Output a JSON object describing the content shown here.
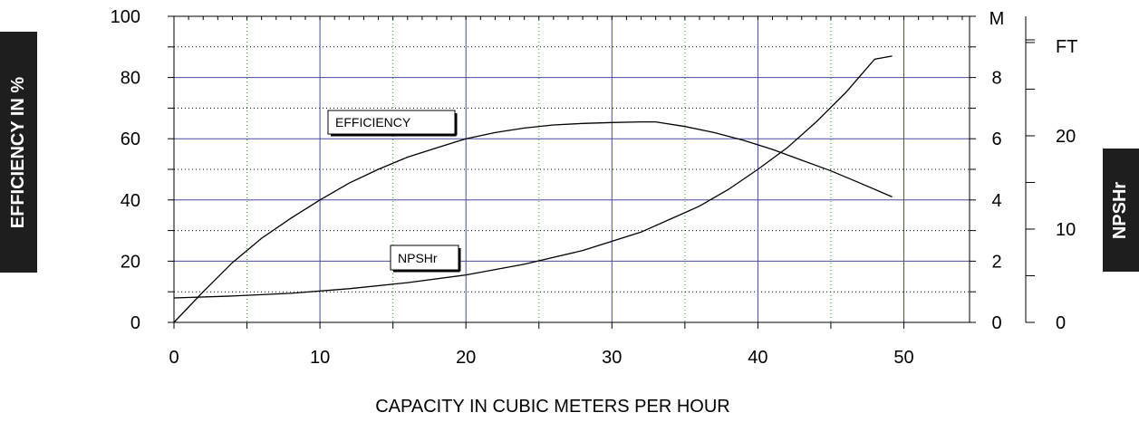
{
  "chart_data": {
    "type": "line",
    "xlabel": "CAPACITY IN CUBIC METERS PER HOUR",
    "ylabel": "EFFICIENCY IN %",
    "y2label": "NPSHr",
    "x_ticks": [
      "0",
      "10",
      "20",
      "30",
      "40",
      "50"
    ],
    "y_ticks": [
      "0",
      "20",
      "40",
      "60",
      "80",
      "100"
    ],
    "m_axis": {
      "unit": "M",
      "ticks": [
        "0",
        "2",
        "4",
        "6",
        "8"
      ]
    },
    "ft_axis": {
      "unit": "FT",
      "ticks": [
        "0",
        "10",
        "20"
      ]
    },
    "xlim": [
      0,
      54.5
    ],
    "ylim": [
      0,
      100
    ],
    "m_lim": [
      0,
      10
    ],
    "ft_lim": [
      0,
      32.81
    ],
    "grid": true,
    "series": [
      {
        "name": "EFFICIENCY",
        "axis": "left",
        "x": [
          0,
          2,
          4,
          6,
          8,
          10,
          12,
          14,
          16,
          18,
          20,
          22,
          24,
          26,
          28,
          30,
          32,
          33,
          35,
          37,
          39,
          41,
          43,
          45,
          47,
          49.2
        ],
        "y": [
          0,
          10,
          19.5,
          27.5,
          34,
          40,
          45.5,
          50,
          54,
          57,
          60,
          62,
          63.5,
          64.5,
          65,
          65.3,
          65.5,
          65.5,
          64,
          62,
          59.5,
          56.5,
          53,
          49.5,
          45.5,
          41
        ]
      },
      {
        "name": "NPSHr",
        "axis": "right_m",
        "x": [
          0,
          4,
          8,
          12,
          16,
          20,
          24,
          28,
          32,
          36,
          38,
          40,
          42,
          44,
          46,
          47,
          48,
          49.2
        ],
        "y": [
          0.8,
          0.86,
          0.95,
          1.1,
          1.3,
          1.55,
          1.9,
          2.35,
          2.95,
          3.8,
          4.35,
          5.0,
          5.7,
          6.55,
          7.5,
          8.05,
          8.6,
          8.7
        ]
      }
    ],
    "annotations": [
      "EFFICIENCY",
      "NPSHr"
    ]
  },
  "colors": {
    "major_grid": "#4a4a9a",
    "minor_grid": "#2a9a2a",
    "curve": "#000000"
  }
}
